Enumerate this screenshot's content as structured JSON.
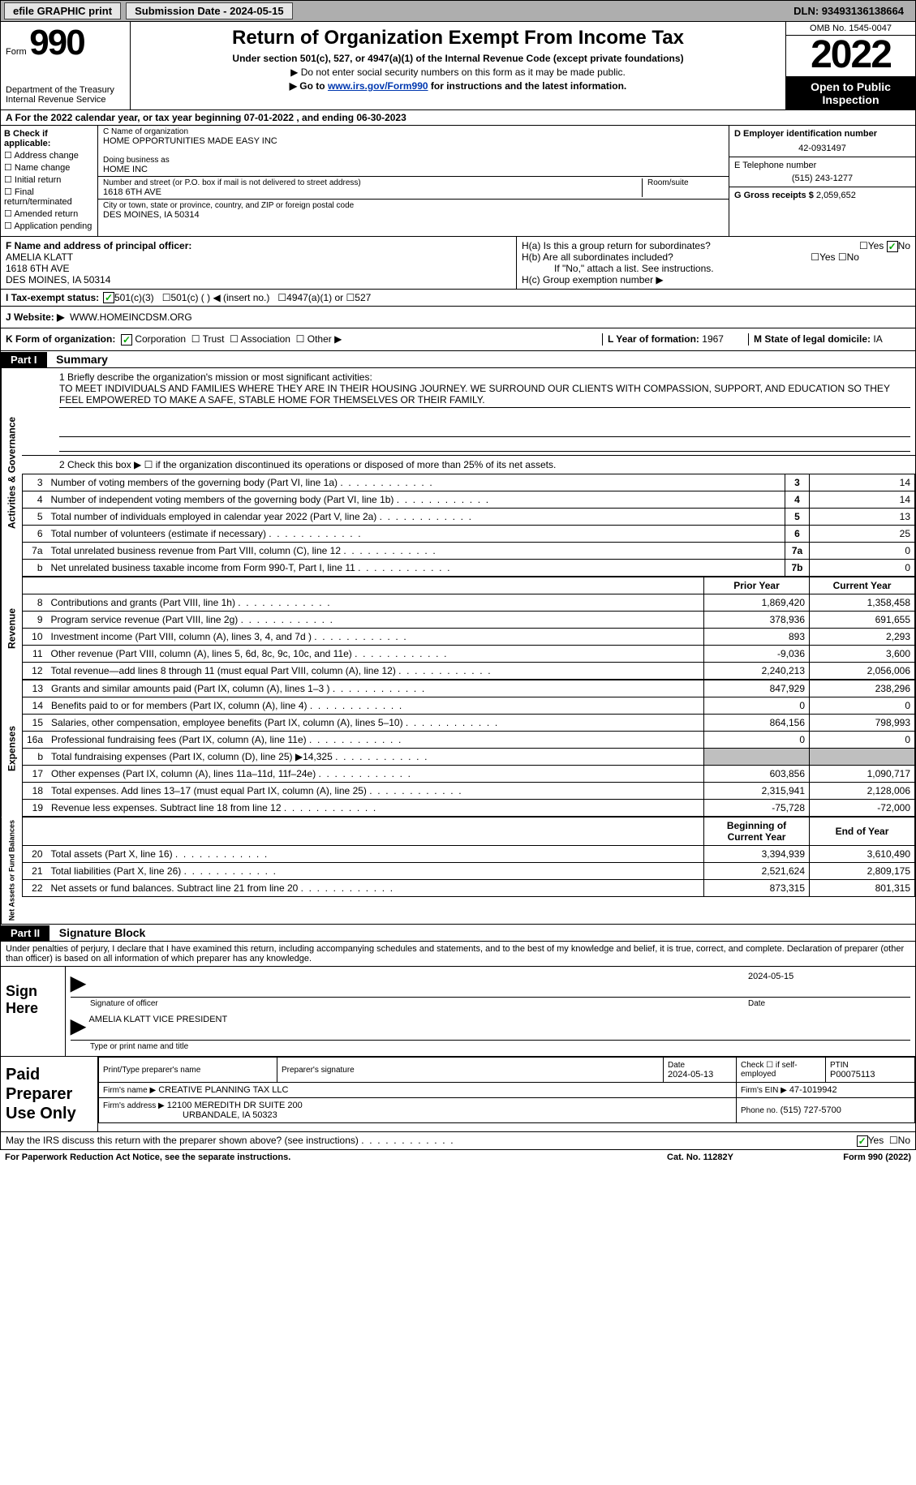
{
  "topbar": {
    "efile_btn": "efile GRAPHIC print",
    "submission_label": "Submission Date - 2024-05-15",
    "dln_label": "DLN: 93493136138664"
  },
  "header": {
    "form_small": "Form",
    "form_num": "990",
    "dept": "Department of the Treasury\nInternal Revenue Service",
    "title": "Return of Organization Exempt From Income Tax",
    "under": "Under section 501(c), 527, or 4947(a)(1) of the Internal Revenue Code (except private foundations)",
    "line1": "▶ Do not enter social security numbers on this form as it may be made public.",
    "line2_pre": "▶ Go to ",
    "line2_link": "www.irs.gov/Form990",
    "line2_post": " for instructions and the latest information.",
    "omb": "OMB No. 1545-0047",
    "year": "2022",
    "open": "Open to Public Inspection"
  },
  "row_a": "A For the 2022 calendar year, or tax year beginning 07-01-2022    , and ending 06-30-2023",
  "col_b": {
    "title": "B Check if applicable:",
    "items": [
      "Address change",
      "Name change",
      "Initial return",
      "Final return/terminated",
      "Amended return",
      "Application pending"
    ]
  },
  "col_c": {
    "name_lbl": "C Name of organization",
    "name_val": "HOME OPPORTUNITIES MADE EASY INC",
    "dba_lbl": "Doing business as",
    "dba_val": "HOME INC",
    "street_lbl": "Number and street (or P.O. box if mail is not delivered to street address)",
    "room_lbl": "Room/suite",
    "street_val": "1618 6TH AVE",
    "city_lbl": "City or town, state or province, country, and ZIP or foreign postal code",
    "city_val": "DES MOINES, IA  50314"
  },
  "col_d": {
    "ein_lbl": "D Employer identification number",
    "ein_val": "42-0931497",
    "tel_lbl": "E Telephone number",
    "tel_val": "(515) 243-1277",
    "gross_lbl": "G Gross receipts $",
    "gross_val": "2,059,652"
  },
  "row_f": {
    "f_lbl": "F Name and address of principal officer:",
    "f_name": "AMELIA KLATT",
    "f_addr1": "1618 6TH AVE",
    "f_addr2": "DES MOINES, IA  50314",
    "ha": "H(a)  Is this a group return for subordinates?",
    "hb": "H(b)  Are all subordinates included?",
    "hb_note": "If \"No,\" attach a list. See instructions.",
    "hc": "H(c)  Group exemption number ▶",
    "yes": "Yes",
    "no": "No"
  },
  "row_i": {
    "lbl": "I  Tax-exempt status:",
    "o1": "501(c)(3)",
    "o2": "501(c) (   ) ◀ (insert no.)",
    "o3": "4947(a)(1) or",
    "o4": "527"
  },
  "row_j": {
    "lbl": "J  Website: ▶",
    "val": "WWW.HOMEINCDSM.ORG"
  },
  "row_k": {
    "lbl": "K Form of organization:",
    "o1": "Corporation",
    "o2": "Trust",
    "o3": "Association",
    "o4": "Other ▶",
    "l_lbl": "L Year of formation:",
    "l_val": "1967",
    "m_lbl": "M State of legal domicile:",
    "m_val": "IA"
  },
  "part1": {
    "bar": "Part I",
    "title": "Summary",
    "q1_lbl": "1  Briefly describe the organization's mission or most significant activities:",
    "q1_val": "TO MEET INDIVIDUALS AND FAMILIES WHERE THEY ARE IN THEIR HOUSING JOURNEY. WE SURROUND OUR CLIENTS WITH COMPASSION, SUPPORT, AND EDUCATION SO THEY FEEL EMPOWERED TO MAKE A SAFE, STABLE HOME FOR THEMSELVES OR THEIR FAMILY.",
    "q2": "2   Check this box ▶ ☐  if the organization discontinued its operations or disposed of more than 25% of its net assets."
  },
  "section_ag": {
    "tab": "Activities & Governance",
    "rows": [
      {
        "n": "3",
        "t": "Number of voting members of the governing body (Part VI, line 1a)",
        "box": "3",
        "v": "14"
      },
      {
        "n": "4",
        "t": "Number of independent voting members of the governing body (Part VI, line 1b)",
        "box": "4",
        "v": "14"
      },
      {
        "n": "5",
        "t": "Total number of individuals employed in calendar year 2022 (Part V, line 2a)",
        "box": "5",
        "v": "13"
      },
      {
        "n": "6",
        "t": "Total number of volunteers (estimate if necessary)",
        "box": "6",
        "v": "25"
      },
      {
        "n": "7a",
        "t": "Total unrelated business revenue from Part VIII, column (C), line 12",
        "box": "7a",
        "v": "0"
      },
      {
        "n": "b",
        "t": "Net unrelated business taxable income from Form 990-T, Part I, line 11",
        "box": "7b",
        "v": "0"
      }
    ]
  },
  "section_rev": {
    "tab": "Revenue",
    "head_prior": "Prior Year",
    "head_current": "Current Year",
    "rows": [
      {
        "n": "8",
        "t": "Contributions and grants (Part VIII, line 1h)",
        "p": "1,869,420",
        "c": "1,358,458"
      },
      {
        "n": "9",
        "t": "Program service revenue (Part VIII, line 2g)",
        "p": "378,936",
        "c": "691,655"
      },
      {
        "n": "10",
        "t": "Investment income (Part VIII, column (A), lines 3, 4, and 7d )",
        "p": "893",
        "c": "2,293"
      },
      {
        "n": "11",
        "t": "Other revenue (Part VIII, column (A), lines 5, 6d, 8c, 9c, 10c, and 11e)",
        "p": "-9,036",
        "c": "3,600"
      },
      {
        "n": "12",
        "t": "Total revenue—add lines 8 through 11 (must equal Part VIII, column (A), line 12)",
        "p": "2,240,213",
        "c": "2,056,006"
      }
    ]
  },
  "section_exp": {
    "tab": "Expenses",
    "rows": [
      {
        "n": "13",
        "t": "Grants and similar amounts paid (Part IX, column (A), lines 1–3 )",
        "p": "847,929",
        "c": "238,296"
      },
      {
        "n": "14",
        "t": "Benefits paid to or for members (Part IX, column (A), line 4)",
        "p": "0",
        "c": "0"
      },
      {
        "n": "15",
        "t": "Salaries, other compensation, employee benefits (Part IX, column (A), lines 5–10)",
        "p": "864,156",
        "c": "798,993"
      },
      {
        "n": "16a",
        "t": "Professional fundraising fees (Part IX, column (A), line 11e)",
        "p": "0",
        "c": "0"
      },
      {
        "n": "b",
        "t": "Total fundraising expenses (Part IX, column (D), line 25) ▶14,325",
        "p": "",
        "c": "",
        "gray": true
      },
      {
        "n": "17",
        "t": "Other expenses (Part IX, column (A), lines 11a–11d, 11f–24e)",
        "p": "603,856",
        "c": "1,090,717"
      },
      {
        "n": "18",
        "t": "Total expenses. Add lines 13–17 (must equal Part IX, column (A), line 25)",
        "p": "2,315,941",
        "c": "2,128,006"
      },
      {
        "n": "19",
        "t": "Revenue less expenses. Subtract line 18 from line 12",
        "p": "-75,728",
        "c": "-72,000"
      }
    ]
  },
  "section_na": {
    "tab": "Net Assets or Fund Balances",
    "head_beg": "Beginning of Current Year",
    "head_end": "End of Year",
    "rows": [
      {
        "n": "20",
        "t": "Total assets (Part X, line 16)",
        "p": "3,394,939",
        "c": "3,610,490"
      },
      {
        "n": "21",
        "t": "Total liabilities (Part X, line 26)",
        "p": "2,521,624",
        "c": "2,809,175"
      },
      {
        "n": "22",
        "t": "Net assets or fund balances. Subtract line 21 from line 20",
        "p": "873,315",
        "c": "801,315"
      }
    ]
  },
  "part2": {
    "bar": "Part II",
    "title": "Signature Block",
    "decl": "Under penalties of perjury, I declare that I have examined this return, including accompanying schedules and statements, and to the best of my knowledge and belief, it is true, correct, and complete. Declaration of preparer (other than officer) is based on all information of which preparer has any knowledge."
  },
  "sign": {
    "left": "Sign Here",
    "sig_lbl": "Signature of officer",
    "date_val": "2024-05-15",
    "date_lbl": "Date",
    "name_val": "AMELIA KLATT  VICE PRESIDENT",
    "name_lbl": "Type or print name and title"
  },
  "prep": {
    "left": "Paid Preparer Use Only",
    "h_name": "Print/Type preparer's name",
    "h_sig": "Preparer's signature",
    "h_date": "Date",
    "date_val": "2024-05-13",
    "h_check": "Check ☐ if self-employed",
    "h_ptin": "PTIN",
    "ptin_val": "P00075113",
    "firm_name_lbl": "Firm's name     ▶",
    "firm_name": "CREATIVE PLANNING TAX LLC",
    "firm_ein_lbl": "Firm's EIN ▶",
    "firm_ein": "47-1019942",
    "firm_addr_lbl": "Firm's address ▶",
    "firm_addr1": "12100 MEREDITH DR SUITE 200",
    "firm_addr2": "URBANDALE, IA  50323",
    "phone_lbl": "Phone no.",
    "phone_val": "(515) 727-5700"
  },
  "footer": {
    "discuss": "May the IRS discuss this return with the preparer shown above? (see instructions)",
    "yes": "Yes",
    "no": "No",
    "pra": "For Paperwork Reduction Act Notice, see the separate instructions.",
    "cat": "Cat. No. 11282Y",
    "form": "Form 990 (2022)"
  },
  "colors": {
    "topbar_bg": "#aeaeae",
    "black": "#000000",
    "link": "#0038b0",
    "check": "#00aa00",
    "gray_cell": "#bfbfbf"
  }
}
